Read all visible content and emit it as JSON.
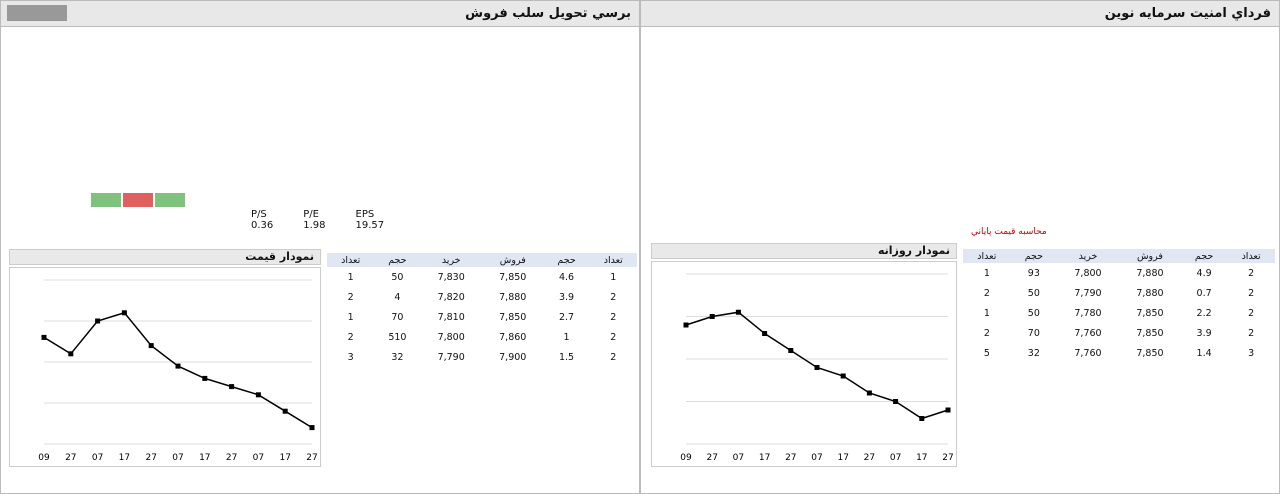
{
  "left": {
    "title": "ﺑﺮﺳﻲ ﺗﺤﻮﻳﻞ ﺳﻠﺐ ﻓﺮﻭﺵ",
    "clock": "",
    "logo": "",
    "orders_header": [
      "ﺗﻌﺪﺍﺩ",
      "ﺣﺠﻢ",
      "ﺧﺮﻳﺪ",
      "ﻓﺮﻭﺵ",
      "ﺣﺠﻢ",
      "ﺗﻌﺪﺍﺩ"
    ],
    "orders": [
      [
        "1",
        "50",
        "7,830",
        "7,850",
        "4.6",
        "1"
      ],
      [
        "2",
        "4",
        "7,820",
        "7,880",
        "3.9",
        "2"
      ],
      [
        "1",
        "70",
        "7,810",
        "7,850",
        "2.7",
        "2"
      ],
      [
        "2",
        "510",
        "7,800",
        "7,860",
        "1",
        "2"
      ],
      [
        "3",
        "32",
        "7,790",
        "7,900",
        "1.5",
        "2"
      ]
    ],
    "eps_row": [
      "P/S",
      "P/E",
      "EPS"
    ],
    "eps_vals": [
      "0.36",
      "1.98",
      "19.57"
    ],
    "chart_title": "ﻧﻤﻮﺩﺍﺭ ﻗﻴﻤﺖ",
    "chart_data": {
      "type": "line",
      "x": [
        "09",
        "27",
        "07",
        "17",
        "27",
        "07",
        "17",
        "27",
        "07",
        "17",
        "27"
      ],
      "values": [
        7880,
        7860,
        7900,
        7910,
        7870,
        7845,
        7830,
        7820,
        7810,
        7790,
        7770
      ],
      "ylim": [
        7750,
        7950
      ]
    },
    "colors": {
      "bar_green": "#7ec27e",
      "bar_red": "#e06060",
      "bar_blue": "#5aa0e0"
    }
  },
  "right": {
    "title": "ﻓﺮﺩﺍﻱ ﺍﻣﻨﻴﺖ ﺳﺮﻣﺎﻳﻪ ﻧﻮﻳﻦ",
    "chart_title": "ﻧﻤﻮﺩﺍﺭ ﺭﻭﺯﺍﻧﻪ",
    "chart_data": {
      "type": "line",
      "x": [
        "09",
        "27",
        "07",
        "17",
        "27",
        "07",
        "17",
        "27",
        "07",
        "17",
        "27"
      ],
      "values": [
        7890,
        7900,
        7905,
        7880,
        7860,
        7840,
        7830,
        7810,
        7800,
        7780,
        7790
      ],
      "ylim": [
        7750,
        7950
      ]
    },
    "orders_header": [
      "ﺗﻌﺪﺍﺩ",
      "ﺣﺠﻢ",
      "ﺧﺮﻳﺪ",
      "ﻓﺮﻭﺵ",
      "ﺣﺠﻢ",
      "ﺗﻌﺪﺍﺩ"
    ],
    "orders": [
      [
        "1",
        "93",
        "7,800",
        "7,880",
        "4.9",
        "2"
      ],
      [
        "2",
        "50",
        "7,790",
        "7,880",
        "0.7",
        "2"
      ],
      [
        "1",
        "50",
        "7,780",
        "7,850",
        "2.2",
        "2"
      ],
      [
        "2",
        "70",
        "7,760",
        "7,850",
        "3.9",
        "2"
      ],
      [
        "5",
        "32",
        "7,760",
        "7,850",
        "1.4",
        "3"
      ]
    ],
    "warning": "ﻣﺤﺎﺳﺒﻪ ﻗﻴﻤﺖ ﭘﺎﻳﺎﻧﻲ"
  }
}
